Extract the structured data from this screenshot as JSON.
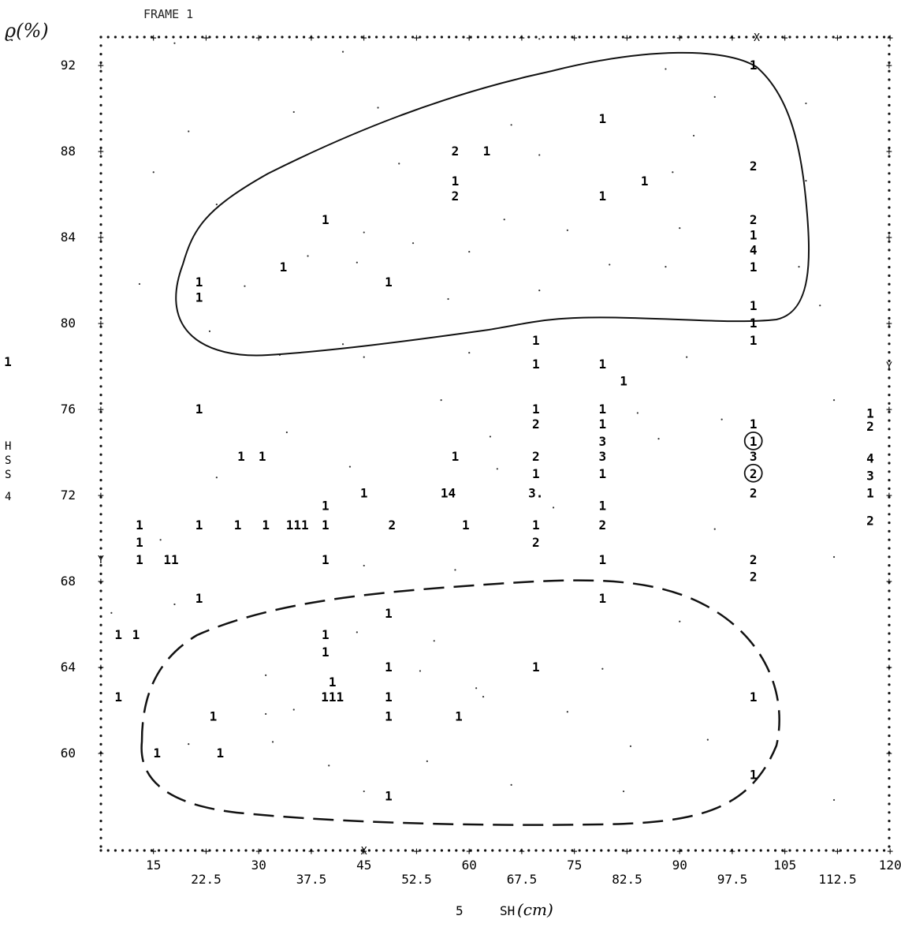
{
  "chart_data": {
    "type": "scatter",
    "frame_label": "FRAME 1",
    "ylabel": "ϱ(%)",
    "xlabel": "SH",
    "xlabel_unit": "(cm)",
    "xlabel_prefix": "5",
    "side_label": [
      "H",
      "S",
      "S",
      "4"
    ],
    "xlim": [
      7.5,
      120
    ],
    "ylim": [
      56.5,
      94.5
    ],
    "x_ticks_primary": [
      "15",
      "30",
      "45",
      "60",
      "75",
      "90",
      "105",
      "120"
    ],
    "x_ticks_secondary": [
      "22.5",
      "37.5",
      "52.5",
      "67.5",
      "82.5",
      "97.5",
      "112.5"
    ],
    "y_ticks": [
      "92",
      "88",
      "84",
      "80",
      "76",
      "72",
      "68",
      "64",
      "60"
    ],
    "y_tick_values": [
      92,
      88,
      84,
      80,
      76,
      72,
      68,
      64,
      60
    ],
    "marker_x": "X",
    "marker_y": "Y",
    "outlier_counts": [
      {
        "side": "left",
        "y": 78.2,
        "count": "1"
      },
      {
        "side": "right",
        "y": 75.8,
        "count": "1"
      },
      {
        "side": "right",
        "y": 75.2,
        "count": "2"
      },
      {
        "side": "right",
        "y": 73.7,
        "count": "4"
      },
      {
        "side": "right",
        "y": 72.9,
        "count": "3"
      },
      {
        "side": "right",
        "y": 72.1,
        "count": "1"
      },
      {
        "side": "right",
        "y": 70.8,
        "count": "2"
      }
    ],
    "points": [
      {
        "x": 100.5,
        "y": 92.0,
        "count": "1"
      },
      {
        "x": 79.0,
        "y": 89.5,
        "count": "1"
      },
      {
        "x": 58.0,
        "y": 88.0,
        "count": "2"
      },
      {
        "x": 62.5,
        "y": 88.0,
        "count": "1"
      },
      {
        "x": 100.5,
        "y": 87.3,
        "count": "2"
      },
      {
        "x": 58.0,
        "y": 86.6,
        "count": "1"
      },
      {
        "x": 85.0,
        "y": 86.6,
        "count": "1"
      },
      {
        "x": 58.0,
        "y": 85.9,
        "count": "2"
      },
      {
        "x": 79.0,
        "y": 85.9,
        "count": "1"
      },
      {
        "x": 39.5,
        "y": 84.8,
        "count": "1"
      },
      {
        "x": 100.5,
        "y": 84.8,
        "count": "2"
      },
      {
        "x": 100.5,
        "y": 84.1,
        "count": "1"
      },
      {
        "x": 100.5,
        "y": 83.4,
        "count": "4"
      },
      {
        "x": 33.5,
        "y": 82.6,
        "count": "1"
      },
      {
        "x": 100.5,
        "y": 82.6,
        "count": "1"
      },
      {
        "x": 21.5,
        "y": 81.9,
        "count": "1"
      },
      {
        "x": 48.5,
        "y": 81.9,
        "count": "1"
      },
      {
        "x": 21.5,
        "y": 81.2,
        "count": "1"
      },
      {
        "x": 100.5,
        "y": 80.8,
        "count": "1"
      },
      {
        "x": 100.5,
        "y": 80.0,
        "count": "1"
      },
      {
        "x": 69.5,
        "y": 79.2,
        "count": "1"
      },
      {
        "x": 100.5,
        "y": 79.2,
        "count": "1"
      },
      {
        "x": 69.5,
        "y": 78.1,
        "count": "1"
      },
      {
        "x": 79.0,
        "y": 78.1,
        "count": "1"
      },
      {
        "x": 82.0,
        "y": 77.3,
        "count": "1"
      },
      {
        "x": 21.5,
        "y": 76.0,
        "count": "1"
      },
      {
        "x": 69.5,
        "y": 76.0,
        "count": "1"
      },
      {
        "x": 79.0,
        "y": 76.0,
        "count": "1"
      },
      {
        "x": 69.5,
        "y": 75.3,
        "count": "2"
      },
      {
        "x": 79.0,
        "y": 75.3,
        "count": "1"
      },
      {
        "x": 100.5,
        "y": 75.3,
        "count": "1"
      },
      {
        "x": 79.0,
        "y": 74.5,
        "count": "3"
      },
      {
        "x": 100.5,
        "y": 74.5,
        "count": "1",
        "circled": true
      },
      {
        "x": 27.5,
        "y": 73.8,
        "count": "1"
      },
      {
        "x": 30.5,
        "y": 73.8,
        "count": "1"
      },
      {
        "x": 58.0,
        "y": 73.8,
        "count": "1"
      },
      {
        "x": 69.5,
        "y": 73.8,
        "count": "2"
      },
      {
        "x": 79.0,
        "y": 73.8,
        "count": "3"
      },
      {
        "x": 100.5,
        "y": 73.8,
        "count": "3"
      },
      {
        "x": 69.5,
        "y": 73.0,
        "count": "1"
      },
      {
        "x": 79.0,
        "y": 73.0,
        "count": "1"
      },
      {
        "x": 100.5,
        "y": 73.0,
        "count": "2",
        "circled": true
      },
      {
        "x": 45.0,
        "y": 72.1,
        "count": "1"
      },
      {
        "x": 57.0,
        "y": 72.1,
        "count": "14"
      },
      {
        "x": 69.5,
        "y": 72.1,
        "count": "3."
      },
      {
        "x": 100.5,
        "y": 72.1,
        "count": "2"
      },
      {
        "x": 39.5,
        "y": 71.5,
        "count": "1"
      },
      {
        "x": 79.0,
        "y": 71.5,
        "count": "1"
      },
      {
        "x": 13.0,
        "y": 70.6,
        "count": "1"
      },
      {
        "x": 21.5,
        "y": 70.6,
        "count": "1"
      },
      {
        "x": 27.0,
        "y": 70.6,
        "count": "1"
      },
      {
        "x": 31.0,
        "y": 70.6,
        "count": "1"
      },
      {
        "x": 35.5,
        "y": 70.6,
        "count": "111"
      },
      {
        "x": 39.5,
        "y": 70.6,
        "count": "1"
      },
      {
        "x": 49.0,
        "y": 70.6,
        "count": "2"
      },
      {
        "x": 59.5,
        "y": 70.6,
        "count": "1"
      },
      {
        "x": 69.5,
        "y": 70.6,
        "count": "1"
      },
      {
        "x": 79.0,
        "y": 70.6,
        "count": "2"
      },
      {
        "x": 13.0,
        "y": 69.8,
        "count": "1"
      },
      {
        "x": 69.5,
        "y": 69.8,
        "count": "2"
      },
      {
        "x": 13.0,
        "y": 69.0,
        "count": "1"
      },
      {
        "x": 17.5,
        "y": 69.0,
        "count": "11"
      },
      {
        "x": 39.5,
        "y": 69.0,
        "count": "1"
      },
      {
        "x": 79.0,
        "y": 69.0,
        "count": "1"
      },
      {
        "x": 100.5,
        "y": 69.0,
        "count": "2"
      },
      {
        "x": 100.5,
        "y": 68.2,
        "count": "2"
      },
      {
        "x": 21.5,
        "y": 67.2,
        "count": "1"
      },
      {
        "x": 79.0,
        "y": 67.2,
        "count": "1"
      },
      {
        "x": 48.5,
        "y": 66.5,
        "count": "1"
      },
      {
        "x": 10.0,
        "y": 65.5,
        "count": "1"
      },
      {
        "x": 12.5,
        "y": 65.5,
        "count": "1"
      },
      {
        "x": 39.5,
        "y": 65.5,
        "count": "1"
      },
      {
        "x": 39.5,
        "y": 64.7,
        "count": "1"
      },
      {
        "x": 48.5,
        "y": 64.0,
        "count": "1"
      },
      {
        "x": 69.5,
        "y": 64.0,
        "count": "1"
      },
      {
        "x": 40.5,
        "y": 63.3,
        "count": "1"
      },
      {
        "x": 10.0,
        "y": 62.6,
        "count": "1"
      },
      {
        "x": 40.5,
        "y": 62.6,
        "count": "111"
      },
      {
        "x": 48.5,
        "y": 62.6,
        "count": "1"
      },
      {
        "x": 100.5,
        "y": 62.6,
        "count": "1"
      },
      {
        "x": 23.5,
        "y": 61.7,
        "count": "1"
      },
      {
        "x": 48.5,
        "y": 61.7,
        "count": "1"
      },
      {
        "x": 58.5,
        "y": 61.7,
        "count": "1"
      },
      {
        "x": 15.5,
        "y": 60.0,
        "count": "1"
      },
      {
        "x": 24.5,
        "y": 60.0,
        "count": "1"
      },
      {
        "x": 100.5,
        "y": 59.0,
        "count": "1"
      },
      {
        "x": 48.5,
        "y": 58.0,
        "count": "1"
      }
    ],
    "stray_dots": [
      [
        18,
        93
      ],
      [
        42,
        92.6
      ],
      [
        70,
        93.2
      ],
      [
        88,
        91.8
      ],
      [
        95,
        90.5
      ],
      [
        108,
        90.2
      ],
      [
        20,
        88.9
      ],
      [
        35,
        89.8
      ],
      [
        47,
        90
      ],
      [
        66,
        89.2
      ],
      [
        92,
        88.7
      ],
      [
        15,
        87
      ],
      [
        50,
        87.4
      ],
      [
        70,
        87.8
      ],
      [
        89,
        87
      ],
      [
        108,
        86.6
      ],
      [
        24,
        85.5
      ],
      [
        45,
        84.2
      ],
      [
        52,
        83.7
      ],
      [
        65,
        84.8
      ],
      [
        74,
        84.3
      ],
      [
        90,
        84.4
      ],
      [
        37,
        83.1
      ],
      [
        44,
        82.8
      ],
      [
        60,
        83.3
      ],
      [
        80,
        82.7
      ],
      [
        88,
        82.6
      ],
      [
        107,
        82.6
      ],
      [
        13,
        81.8
      ],
      [
        28,
        81.7
      ],
      [
        57,
        81.1
      ],
      [
        70,
        81.5
      ],
      [
        110,
        80.8
      ],
      [
        23,
        79.6
      ],
      [
        42,
        79.0
      ],
      [
        33,
        78.5
      ],
      [
        45,
        78.4
      ],
      [
        60,
        78.6
      ],
      [
        91,
        78.4
      ],
      [
        56,
        76.4
      ],
      [
        84,
        75.8
      ],
      [
        96,
        75.5
      ],
      [
        112,
        76.4
      ],
      [
        34,
        74.9
      ],
      [
        63,
        74.7
      ],
      [
        87,
        74.6
      ],
      [
        24,
        72.8
      ],
      [
        43,
        73.3
      ],
      [
        64,
        73.2
      ],
      [
        72,
        71.4
      ],
      [
        95,
        70.4
      ],
      [
        16,
        69.9
      ],
      [
        45,
        68.7
      ],
      [
        58,
        68.5
      ],
      [
        112,
        69.1
      ],
      [
        9,
        66.5
      ],
      [
        18,
        66.9
      ],
      [
        44,
        65.6
      ],
      [
        55,
        65.2
      ],
      [
        90,
        66.1
      ],
      [
        31,
        63.6
      ],
      [
        53,
        63.8
      ],
      [
        61,
        63.0
      ],
      [
        79,
        63.9
      ],
      [
        31,
        61.8
      ],
      [
        35,
        62.0
      ],
      [
        62,
        62.6
      ],
      [
        74,
        61.9
      ],
      [
        20,
        60.4
      ],
      [
        32,
        60.5
      ],
      [
        40,
        59.4
      ],
      [
        54,
        59.6
      ],
      [
        83,
        60.3
      ],
      [
        94,
        60.6
      ],
      [
        45,
        58.2
      ],
      [
        66,
        58.5
      ],
      [
        82,
        58.2
      ],
      [
        112,
        57.8
      ]
    ]
  }
}
